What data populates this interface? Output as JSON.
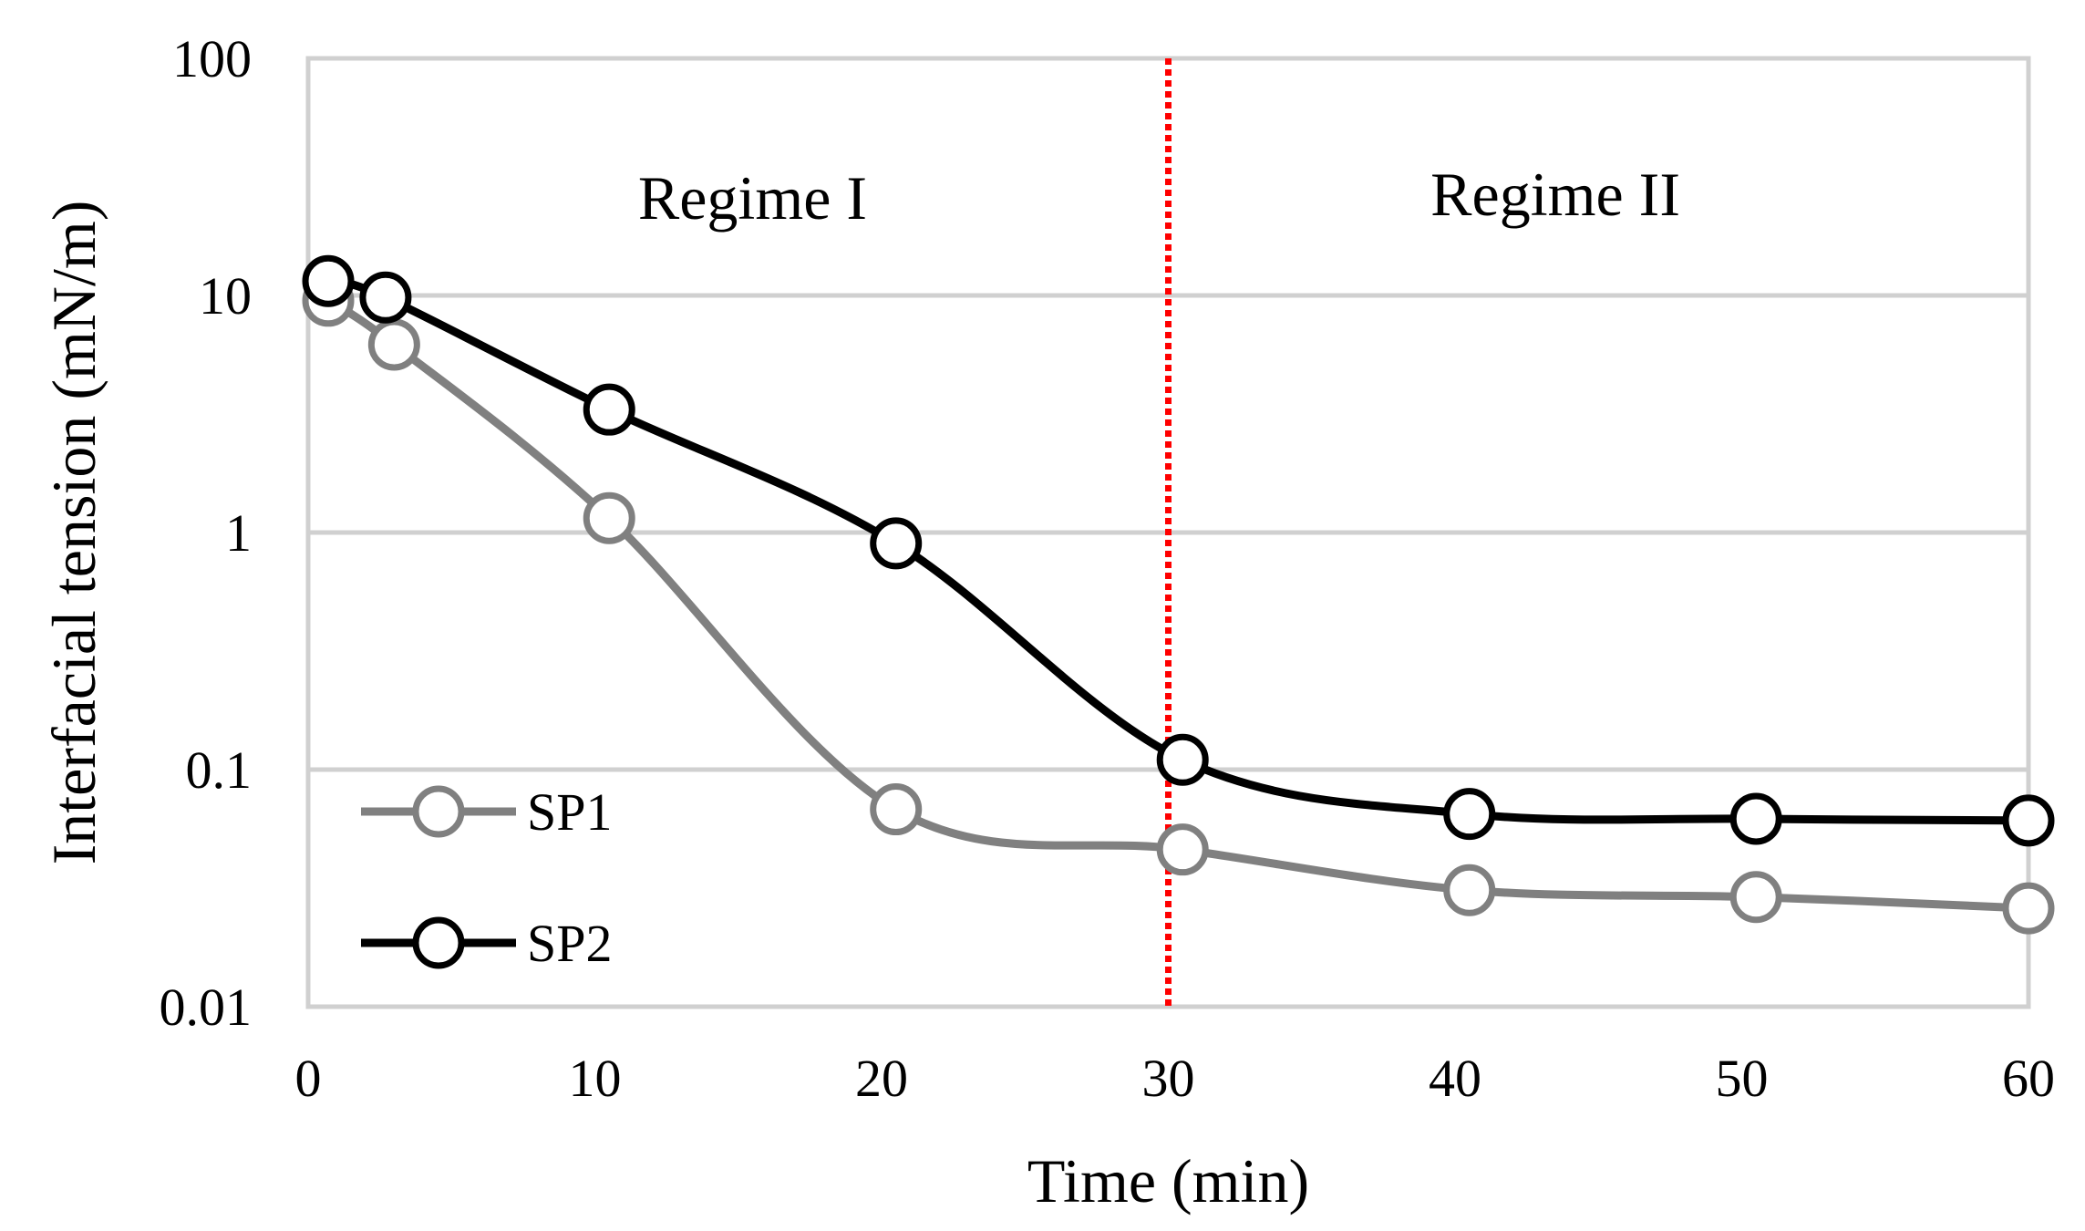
{
  "chart_data": {
    "type": "line",
    "title": "",
    "xlabel": "Time (min)",
    "ylabel": "Interfacial tension (mN/m)",
    "xlim": [
      0,
      60
    ],
    "ylim": [
      0.01,
      100
    ],
    "yscale": "log",
    "grid": true,
    "x_ticks": [
      0,
      10,
      20,
      30,
      40,
      50,
      60
    ],
    "x_tick_labels": [
      "0",
      "10",
      "20",
      "30",
      "40",
      "50",
      "60"
    ],
    "y_ticks": [
      0.01,
      0.1,
      1,
      10,
      100
    ],
    "y_tick_labels": [
      "0.01",
      "0.1",
      "1",
      "10",
      "100"
    ],
    "series": [
      {
        "name": "SP1",
        "color": "#808080",
        "x": [
          0.7,
          3,
          10.5,
          20.5,
          30.5,
          40.5,
          50.5,
          60
        ],
        "values": [
          9.5,
          6.2,
          1.15,
          0.068,
          0.046,
          0.031,
          0.029,
          0.026
        ]
      },
      {
        "name": "SP2",
        "color": "#000000",
        "x": [
          0.7,
          2.7,
          10.5,
          20.5,
          30.5,
          40.5,
          50.5,
          60
        ],
        "values": [
          11.5,
          9.8,
          3.3,
          0.9,
          0.11,
          0.065,
          0.062,
          0.061
        ]
      }
    ],
    "annotations": [
      {
        "type": "vline",
        "x": 30,
        "color": "#ff0000",
        "style": "dotted"
      },
      {
        "type": "text",
        "text": "Regime I",
        "x": 15.5,
        "y": 26
      },
      {
        "type": "text",
        "text": "Regime II",
        "x": 43.5,
        "y": 27
      }
    ],
    "legend": {
      "position": "bottom-left",
      "entries": [
        "SP1",
        "SP2"
      ]
    }
  }
}
